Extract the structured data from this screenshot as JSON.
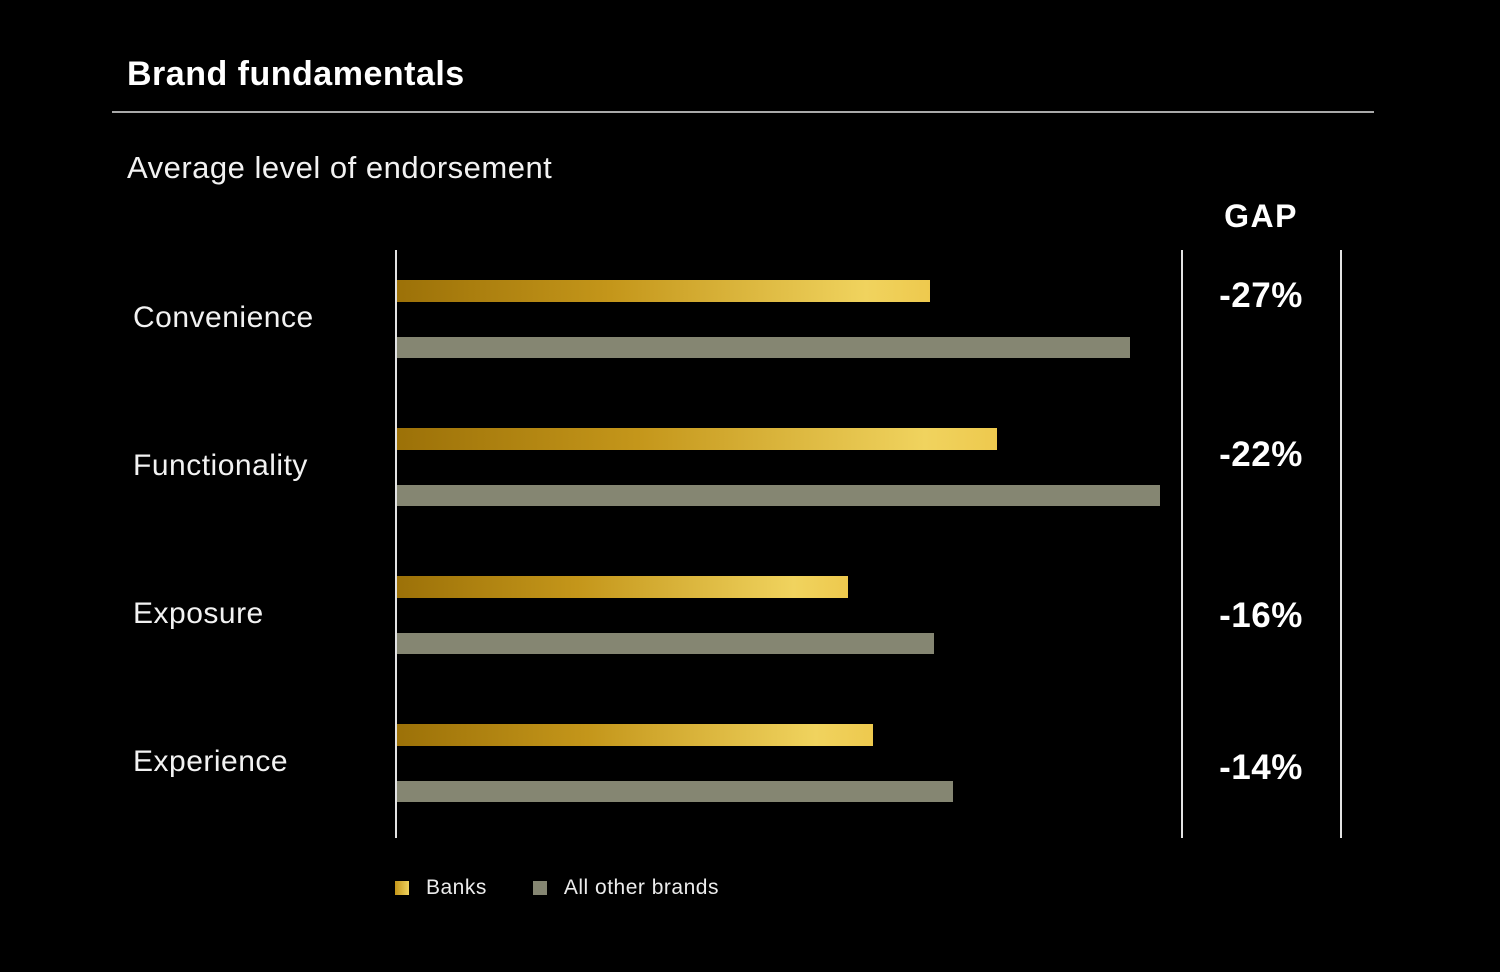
{
  "title": "Brand fundamentals",
  "subtitle": "Average level of endorsement",
  "gap": {
    "header": "GAP"
  },
  "colors": {
    "background": "#000000",
    "banks_gradient_start": "#9c7108",
    "banks_gradient_end": "#f0d35e",
    "others_bar": "#858672",
    "text": "#ffffff",
    "rule_line": "#a9a9a9",
    "axis_line": "#e3e3e3"
  },
  "chart_data": {
    "type": "bar",
    "orientation": "horizontal",
    "title": "Average level of endorsement",
    "categories": [
      "Convenience",
      "Functionality",
      "Exposure",
      "Experience"
    ],
    "series": [
      {
        "name": "Banks",
        "values_pct_of_axis_width": [
          68.1,
          76.6,
          57.6,
          60.8
        ]
      },
      {
        "name": "All other brands",
        "values_pct_of_axis_width": [
          93.6,
          97.4,
          68.6,
          71.0
        ]
      }
    ],
    "gap_labels": [
      "-27%",
      "-22%",
      "-16%",
      "-14%"
    ],
    "gap_definition": "relative gap of Banks vs All other brands per category",
    "value_axis": "unlabeled; bar lengths are relative levels of endorsement",
    "grid": false,
    "legend_position": "bottom-left"
  }
}
